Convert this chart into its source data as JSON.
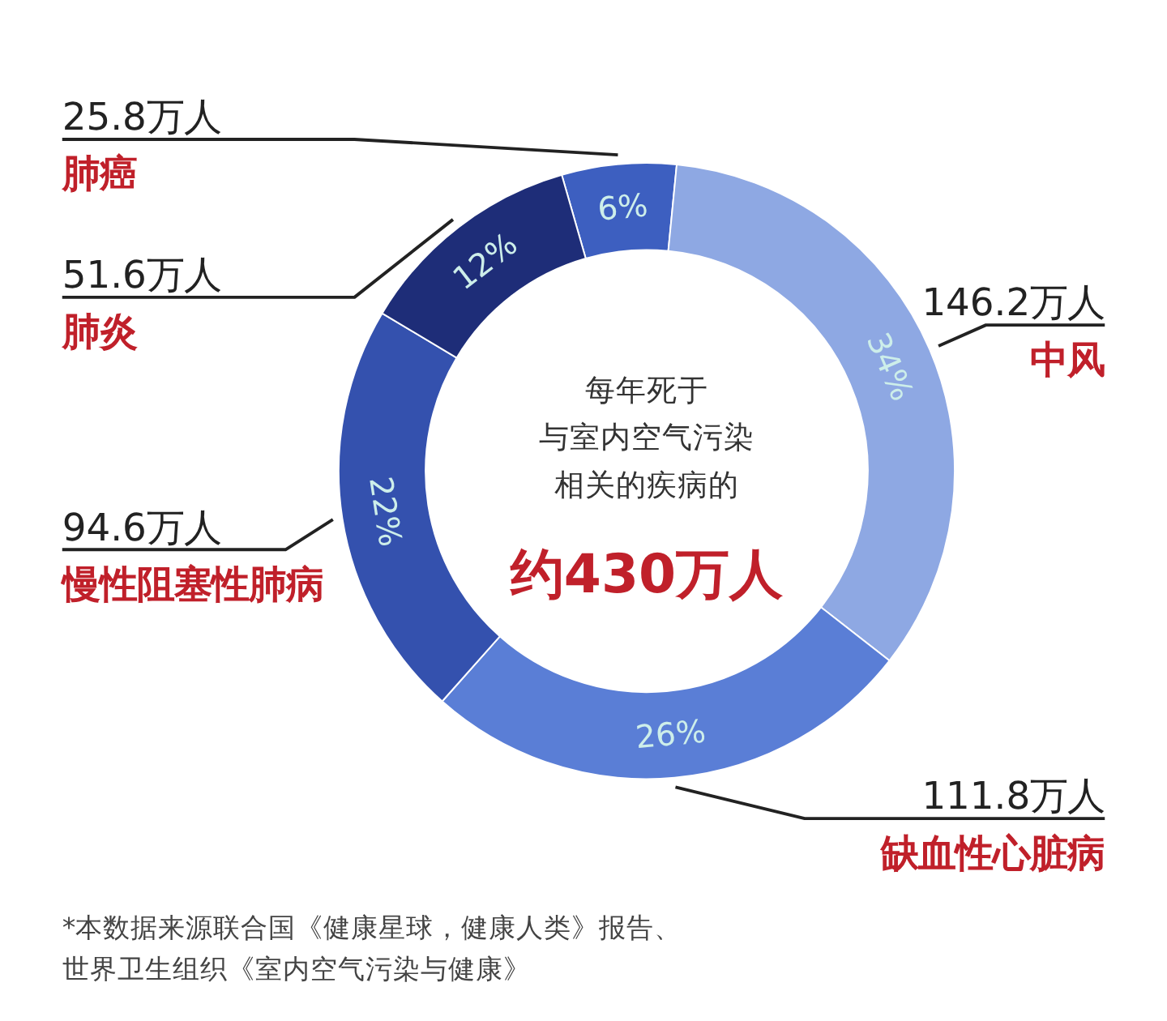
{
  "chart_data": {
    "type": "donut",
    "title": "每年死于与室内空气污染相关的疾病的",
    "subtitle": "约430万人",
    "categories": [
      "肺癌",
      "中风",
      "缺血性心脏病",
      "慢性阻塞性肺病",
      "肺炎"
    ],
    "values": [
      6,
      34,
      26,
      22,
      12
    ],
    "colors": [
      "#3d5fc0",
      "#8ea8e3",
      "#5a7ed6",
      "#3451ae",
      "#1e2d78"
    ],
    "value_labels": [
      "6%",
      "34%",
      "26%",
      "22%",
      "12%"
    ],
    "annotations": [
      "25.8万人",
      "146.2万人",
      "111.8万人",
      "94.6万人",
      "51.6万人",
      "*本数据来源联合国《健康星球，健康人类》报告、世界卫生组织《室内空气污染与健康》"
    ]
  }
}
